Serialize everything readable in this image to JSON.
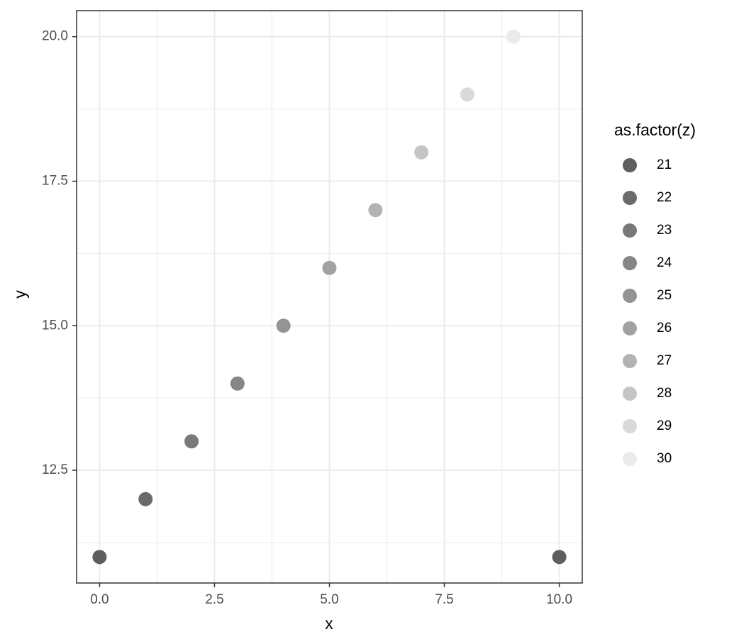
{
  "chart_data": {
    "type": "scatter",
    "x_label": "x",
    "y_label": "y",
    "legend_title": "as.factor(z)",
    "series": [
      {
        "name": "21",
        "color": "#5e5e5e",
        "x": [
          0,
          10
        ],
        "values": [
          11,
          11
        ]
      },
      {
        "name": "22",
        "color": "#6b6b6b",
        "x": [
          1
        ],
        "values": [
          12
        ]
      },
      {
        "name": "23",
        "color": "#797979",
        "x": [
          2
        ],
        "values": [
          13
        ]
      },
      {
        "name": "24",
        "color": "#868686",
        "x": [
          3
        ],
        "values": [
          14
        ]
      },
      {
        "name": "25",
        "color": "#949494",
        "x": [
          4
        ],
        "values": [
          15
        ]
      },
      {
        "name": "26",
        "color": "#a2a2a2",
        "x": [
          5
        ],
        "values": [
          16
        ]
      },
      {
        "name": "27",
        "color": "#b3b3b3",
        "x": [
          6
        ],
        "values": [
          17
        ]
      },
      {
        "name": "28",
        "color": "#c5c5c5",
        "x": [
          7
        ],
        "values": [
          18
        ]
      },
      {
        "name": "29",
        "color": "#d9d9d9",
        "x": [
          8
        ],
        "values": [
          19
        ]
      },
      {
        "name": "30",
        "color": "#ebebeb",
        "x": [
          9
        ],
        "values": [
          20
        ]
      }
    ],
    "xlim": [
      -0.5,
      10.5
    ],
    "ylim": [
      10.55,
      20.45
    ],
    "xticks": [
      {
        "value": 0,
        "label": "0.0"
      },
      2.5,
      {
        "value": 5,
        "label": "5.0"
      },
      7.5,
      {
        "value": 10,
        "label": "10.0"
      }
    ],
    "yticks": [
      12.5,
      {
        "value": 15,
        "label": "15.0"
      },
      17.5,
      {
        "value": 20,
        "label": "20.0"
      }
    ],
    "x_minor_ticks": [
      1.25,
      3.75,
      6.25,
      8.75
    ],
    "y_minor_ticks": [
      11.25,
      13.75,
      16.25,
      18.75
    ],
    "grid": true,
    "legend": "right"
  }
}
